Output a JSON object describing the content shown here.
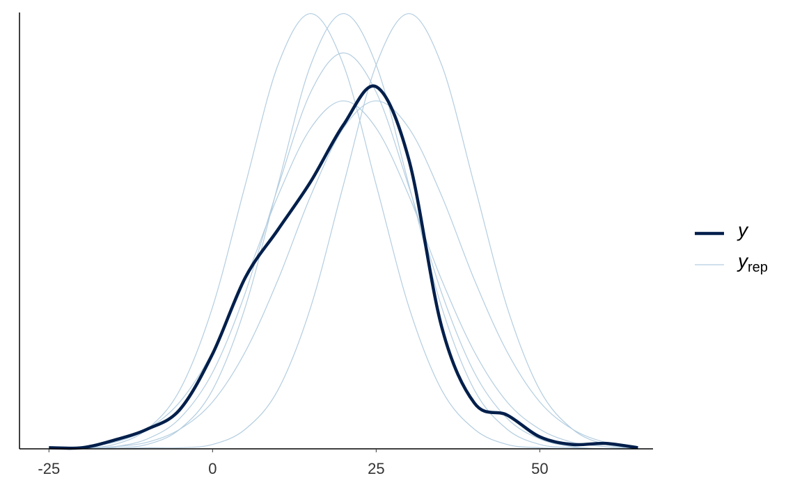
{
  "chart_data": {
    "type": "density_overlay",
    "x": [
      -25,
      -20,
      -15,
      -10,
      -5,
      0,
      5,
      10,
      15,
      20,
      25,
      30,
      35,
      40,
      45,
      50,
      55,
      60,
      65
    ],
    "xlim": [
      -29.5,
      67.3
    ],
    "ylim": [
      0,
      0.04
    ],
    "xticks": [
      -25,
      0,
      25,
      50
    ],
    "series": [
      {
        "name": "y",
        "color": "#011f4b",
        "values": [
          0.0001,
          0.0001,
          0.0008,
          0.0018,
          0.0036,
          0.0087,
          0.0157,
          0.0201,
          0.0245,
          0.0297,
          0.0332,
          0.0265,
          0.0112,
          0.0042,
          0.0031,
          0.0011,
          0.0004,
          0.0005,
          0.0001
        ]
      },
      {
        "name": "y",
        "name_subscript": "rep",
        "color": "#b3cde0",
        "runs": [
          [
            0.0,
            0.0001,
            0.0001,
            0.0004,
            0.0018,
            0.0054,
            0.013,
            0.0242,
            0.0352,
            0.0399,
            0.0352,
            0.0242,
            0.013,
            0.0054,
            0.0018,
            0.0004,
            0.0001,
            0.0,
            0.0
          ],
          [
            0.0,
            0.0002,
            0.0006,
            0.0018,
            0.0043,
            0.0089,
            0.0155,
            0.0232,
            0.0294,
            0.0319,
            0.0294,
            0.0232,
            0.0155,
            0.0089,
            0.0043,
            0.0018,
            0.0006,
            0.0002,
            0.0
          ],
          [
            0.0,
            0.0,
            0.0002,
            0.0006,
            0.0018,
            0.0043,
            0.0089,
            0.0155,
            0.0232,
            0.0294,
            0.0319,
            0.0294,
            0.0232,
            0.0155,
            0.0089,
            0.0043,
            0.0018,
            0.0006,
            0.0002
          ],
          [
            0.0001,
            0.0001,
            0.0004,
            0.0018,
            0.0054,
            0.013,
            0.0242,
            0.0352,
            0.0399,
            0.0352,
            0.0242,
            0.013,
            0.0054,
            0.0018,
            0.0004,
            0.0001,
            0.0,
            0.0,
            0.0
          ],
          [
            0.0,
            0.0,
            0.0,
            0.0001,
            0.0001,
            0.0004,
            0.0018,
            0.0054,
            0.013,
            0.0242,
            0.0352,
            0.0399,
            0.0352,
            0.0242,
            0.013,
            0.0054,
            0.0018,
            0.0004,
            0.0001
          ],
          [
            0.0,
            0.0,
            0.0002,
            0.0009,
            0.0028,
            0.007,
            0.0143,
            0.024,
            0.0327,
            0.0363,
            0.0327,
            0.024,
            0.0143,
            0.007,
            0.0028,
            0.0009,
            0.0002,
            0.0,
            0.0
          ]
        ]
      }
    ]
  }
}
